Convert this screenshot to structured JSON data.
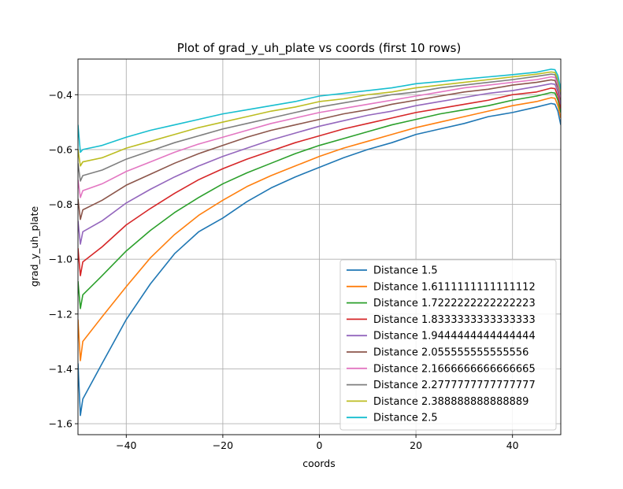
{
  "chart_data": {
    "type": "line",
    "title": "Plot of grad_y_uh_plate vs coords (first 10 rows)",
    "xlabel": "coords",
    "ylabel": "grad_y_uh_plate",
    "xlim": [
      -50,
      50
    ],
    "ylim": [
      -1.64,
      -0.27
    ],
    "xticks": [
      -40,
      -20,
      0,
      20,
      40
    ],
    "yticks": [
      -1.6,
      -1.4,
      -1.2,
      -1.0,
      -0.8,
      -0.6,
      -0.4
    ],
    "xtick_labels": [
      "−40",
      "−20",
      "0",
      "20",
      "40"
    ],
    "ytick_labels": [
      "−1.6",
      "−1.4",
      "−1.2",
      "−1.0",
      "−0.8",
      "−0.6",
      "−0.4"
    ],
    "grid": true,
    "legend_position": "lower-right",
    "series": [
      {
        "name": "Distance 1.5",
        "color": "#1f77b4",
        "x": [
          -50,
          -49.5,
          -49,
          -45,
          -40,
          -35,
          -30,
          -25,
          -20,
          -15,
          -10,
          -5,
          0,
          5,
          10,
          15,
          20,
          25,
          30,
          35,
          40,
          45,
          48,
          48.8,
          49.4,
          50
        ],
        "y": [
          -1.38,
          -1.57,
          -1.51,
          -1.38,
          -1.22,
          -1.09,
          -0.98,
          -0.9,
          -0.85,
          -0.79,
          -0.74,
          -0.7,
          -0.665,
          -0.63,
          -0.6,
          -0.575,
          -0.545,
          -0.525,
          -0.505,
          -0.48,
          -0.465,
          -0.445,
          -0.432,
          -0.435,
          -0.46,
          -0.51
        ]
      },
      {
        "name": "Distance 1.6111111111111112",
        "color": "#ff7f0e",
        "x": [
          -50,
          -49.5,
          -49,
          -45,
          -40,
          -35,
          -30,
          -25,
          -20,
          -15,
          -10,
          -5,
          0,
          5,
          10,
          15,
          20,
          25,
          30,
          35,
          40,
          45,
          48,
          48.8,
          49.4,
          50
        ],
        "y": [
          -1.22,
          -1.37,
          -1.3,
          -1.21,
          -1.1,
          -0.995,
          -0.91,
          -0.84,
          -0.785,
          -0.735,
          -0.695,
          -0.66,
          -0.625,
          -0.595,
          -0.57,
          -0.545,
          -0.52,
          -0.5,
          -0.48,
          -0.46,
          -0.44,
          -0.425,
          -0.411,
          -0.413,
          -0.44,
          -0.485
        ]
      },
      {
        "name": "Distance 1.7222222222222223",
        "color": "#2ca02c",
        "x": [
          -50,
          -49.5,
          -49,
          -45,
          -40,
          -35,
          -30,
          -25,
          -20,
          -15,
          -10,
          -5,
          0,
          5,
          10,
          15,
          20,
          25,
          30,
          35,
          40,
          45,
          48,
          48.8,
          49.4,
          50
        ],
        "y": [
          -1.08,
          -1.18,
          -1.13,
          -1.06,
          -0.97,
          -0.895,
          -0.83,
          -0.775,
          -0.725,
          -0.685,
          -0.65,
          -0.615,
          -0.585,
          -0.56,
          -0.535,
          -0.51,
          -0.49,
          -0.47,
          -0.455,
          -0.44,
          -0.42,
          -0.405,
          -0.392,
          -0.394,
          -0.42,
          -0.465
        ]
      },
      {
        "name": "Distance 1.8333333333333333",
        "color": "#d62728",
        "x": [
          -50,
          -49.5,
          -49,
          -45,
          -40,
          -35,
          -30,
          -25,
          -20,
          -15,
          -10,
          -5,
          0,
          5,
          10,
          15,
          20,
          25,
          30,
          35,
          40,
          45,
          48,
          48.8,
          49.4,
          50
        ],
        "y": [
          -0.96,
          -1.06,
          -1.01,
          -0.955,
          -0.875,
          -0.815,
          -0.76,
          -0.71,
          -0.67,
          -0.635,
          -0.605,
          -0.575,
          -0.55,
          -0.525,
          -0.505,
          -0.485,
          -0.465,
          -0.45,
          -0.435,
          -0.42,
          -0.4,
          -0.39,
          -0.376,
          -0.378,
          -0.405,
          -0.45
        ]
      },
      {
        "name": "Distance 1.9444444444444444",
        "color": "#9467bd",
        "x": [
          -50,
          -49.5,
          -49,
          -45,
          -40,
          -35,
          -30,
          -25,
          -20,
          -15,
          -10,
          -5,
          0,
          5,
          10,
          15,
          20,
          25,
          30,
          35,
          40,
          45,
          48,
          48.8,
          49.4,
          50
        ],
        "y": [
          -0.86,
          -0.945,
          -0.9,
          -0.86,
          -0.795,
          -0.745,
          -0.7,
          -0.66,
          -0.625,
          -0.595,
          -0.565,
          -0.54,
          -0.515,
          -0.495,
          -0.475,
          -0.46,
          -0.44,
          -0.425,
          -0.41,
          -0.395,
          -0.385,
          -0.37,
          -0.36,
          -0.362,
          -0.39,
          -0.435
        ]
      },
      {
        "name": "Distance 2.055555555555556",
        "color": "#8c564b",
        "x": [
          -50,
          -49.5,
          -49,
          -45,
          -40,
          -35,
          -30,
          -25,
          -20,
          -15,
          -10,
          -5,
          0,
          5,
          10,
          15,
          20,
          25,
          30,
          35,
          40,
          45,
          48,
          48.8,
          49.4,
          50
        ],
        "y": [
          -0.78,
          -0.855,
          -0.82,
          -0.785,
          -0.73,
          -0.69,
          -0.65,
          -0.615,
          -0.585,
          -0.555,
          -0.53,
          -0.51,
          -0.49,
          -0.47,
          -0.455,
          -0.435,
          -0.42,
          -0.405,
          -0.39,
          -0.38,
          -0.365,
          -0.355,
          -0.346,
          -0.348,
          -0.375,
          -0.42
        ]
      },
      {
        "name": "Distance 2.1666666666666665",
        "color": "#e377c2",
        "x": [
          -50,
          -49.5,
          -49,
          -45,
          -40,
          -35,
          -30,
          -25,
          -20,
          -15,
          -10,
          -5,
          0,
          5,
          10,
          15,
          20,
          25,
          30,
          35,
          40,
          45,
          48,
          48.8,
          49.4,
          50
        ],
        "y": [
          -0.71,
          -0.775,
          -0.75,
          -0.725,
          -0.68,
          -0.645,
          -0.61,
          -0.58,
          -0.555,
          -0.53,
          -0.505,
          -0.485,
          -0.465,
          -0.45,
          -0.435,
          -0.42,
          -0.405,
          -0.39,
          -0.375,
          -0.365,
          -0.355,
          -0.345,
          -0.335,
          -0.337,
          -0.362,
          -0.41
        ]
      },
      {
        "name": "Distance 2.2777777777777777",
        "color": "#7f7f7f",
        "x": [
          -50,
          -49.5,
          -49,
          -45,
          -40,
          -35,
          -30,
          -25,
          -20,
          -15,
          -10,
          -5,
          0,
          5,
          10,
          15,
          20,
          25,
          30,
          35,
          40,
          45,
          48,
          48.8,
          49.4,
          50
        ],
        "y": [
          -0.65,
          -0.715,
          -0.695,
          -0.675,
          -0.635,
          -0.605,
          -0.575,
          -0.55,
          -0.525,
          -0.505,
          -0.485,
          -0.465,
          -0.445,
          -0.43,
          -0.415,
          -0.4,
          -0.39,
          -0.375,
          -0.365,
          -0.355,
          -0.345,
          -0.333,
          -0.325,
          -0.327,
          -0.352,
          -0.4
        ]
      },
      {
        "name": "Distance 2.388888888888889",
        "color": "#bcbd22",
        "x": [
          -50,
          -49.5,
          -49,
          -45,
          -40,
          -35,
          -30,
          -25,
          -20,
          -15,
          -10,
          -5,
          0,
          5,
          10,
          15,
          20,
          25,
          30,
          35,
          40,
          45,
          48,
          48.8,
          49.4,
          50
        ],
        "y": [
          -0.6,
          -0.66,
          -0.645,
          -0.63,
          -0.595,
          -0.57,
          -0.545,
          -0.52,
          -0.5,
          -0.48,
          -0.46,
          -0.445,
          -0.425,
          -0.415,
          -0.4,
          -0.39,
          -0.375,
          -0.365,
          -0.355,
          -0.345,
          -0.335,
          -0.325,
          -0.317,
          -0.319,
          -0.342,
          -0.39
        ]
      },
      {
        "name": "Distance 2.5",
        "color": "#17becf",
        "x": [
          -50,
          -49.5,
          -49,
          -45,
          -40,
          -35,
          -30,
          -25,
          -20,
          -15,
          -10,
          -5,
          0,
          5,
          10,
          15,
          20,
          25,
          30,
          35,
          40,
          45,
          48,
          48.8,
          49.4,
          50
        ],
        "y": [
          -0.51,
          -0.61,
          -0.6,
          -0.585,
          -0.555,
          -0.53,
          -0.51,
          -0.49,
          -0.47,
          -0.455,
          -0.44,
          -0.425,
          -0.405,
          -0.395,
          -0.385,
          -0.375,
          -0.36,
          -0.352,
          -0.343,
          -0.335,
          -0.327,
          -0.318,
          -0.307,
          -0.309,
          -0.33,
          -0.38
        ]
      }
    ]
  }
}
